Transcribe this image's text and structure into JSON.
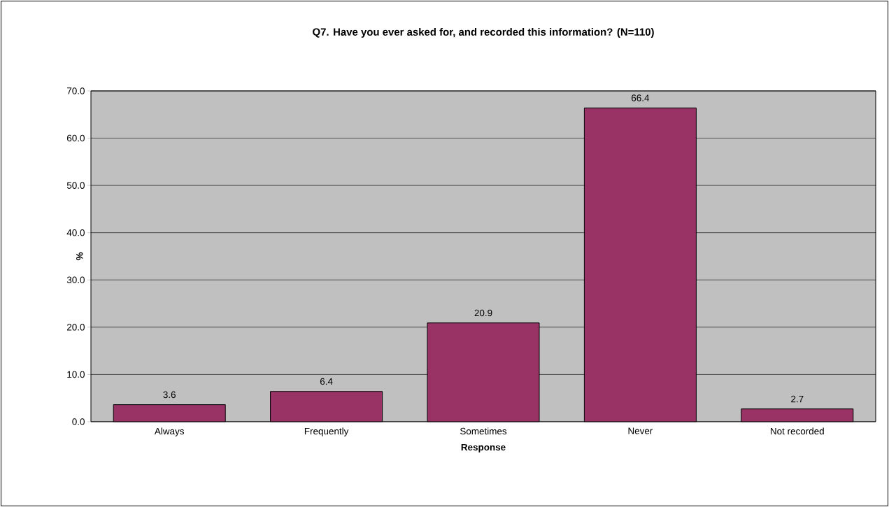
{
  "chart_data": {
    "type": "bar",
    "title": "Q7.  Have you ever asked for, and recorded this information? (N=110)",
    "xlabel": "Response",
    "ylabel": "%",
    "categories": [
      "Always",
      "Frequently",
      "Sometimes",
      "Never",
      "Not recorded"
    ],
    "values": [
      3.6,
      6.4,
      20.9,
      66.4,
      2.7
    ],
    "color": "#993366",
    "data_labels": true,
    "ylim": [
      0,
      70
    ],
    "yticks": [
      {
        "value": 0,
        "label": "0.0"
      },
      {
        "value": 10,
        "label": "10.0"
      },
      {
        "value": 20,
        "label": "20.0"
      },
      {
        "value": 30,
        "label": "30.0"
      },
      {
        "value": 40,
        "label": "40.0"
      },
      {
        "value": 50,
        "label": "50.0"
      },
      {
        "value": 60,
        "label": "60.0"
      },
      {
        "value": 70,
        "label": "70.0"
      }
    ],
    "grid": "y"
  }
}
